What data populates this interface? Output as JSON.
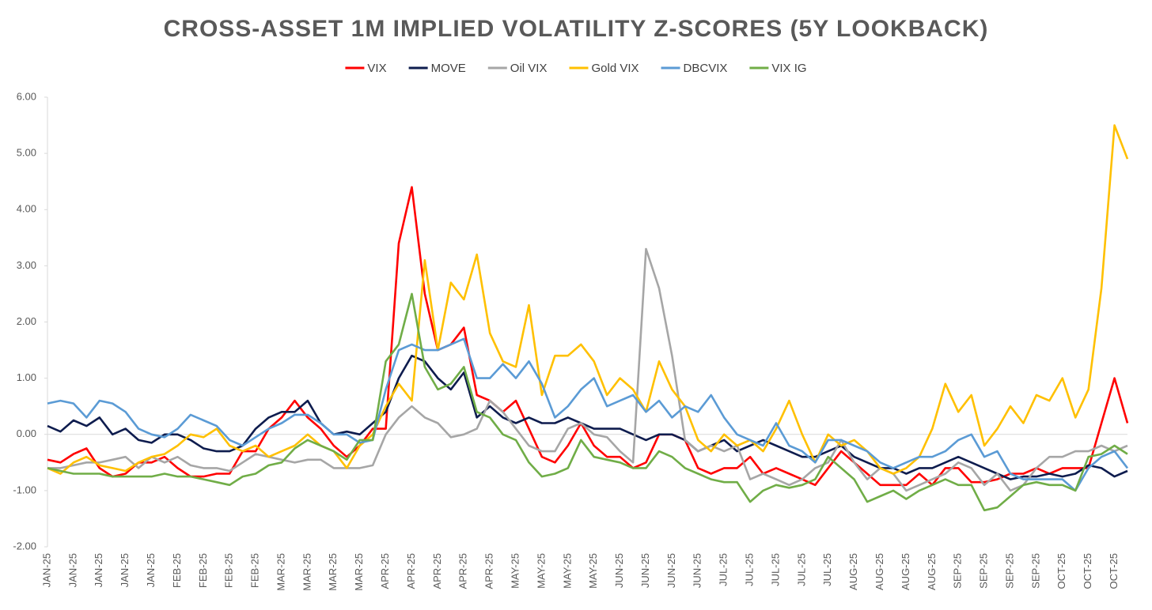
{
  "chart_data": {
    "type": "line",
    "title": "CROSS-ASSET 1M IMPLIED VOLATILITY Z-SCORES (5Y LOOKBACK)",
    "categories": [
      "JAN-25",
      null,
      "JAN-25",
      null,
      "JAN-25",
      null,
      "JAN-25",
      null,
      "JAN-25",
      null,
      "FEB-25",
      null,
      "FEB-25",
      null,
      "FEB-25",
      null,
      "FEB-25",
      null,
      "MAR-25",
      null,
      "MAR-25",
      null,
      "MAR-25",
      null,
      "MAR-25",
      null,
      "APR-25",
      null,
      "APR-25",
      null,
      "APR-25",
      null,
      "APR-25",
      null,
      "APR-25",
      null,
      "MAY-25",
      null,
      "MAY-25",
      null,
      "MAY-25",
      null,
      "MAY-25",
      null,
      "JUN-25",
      null,
      "JUN-25",
      null,
      "JUN-25",
      null,
      "JUN-25",
      null,
      "JUL-25",
      null,
      "JUL-25",
      null,
      "JUL-25",
      null,
      "JUL-25",
      null,
      "JUL-25",
      null,
      "AUG-25",
      null,
      "AUG-25",
      null,
      "AUG-25",
      null,
      "AUG-25",
      null,
      "SEP-25",
      null,
      "SEP-25",
      null,
      "SEP-25",
      null,
      "SEP-25",
      null,
      "OCT-25",
      null,
      "OCT-25",
      null,
      "OCT-25",
      null
    ],
    "series": [
      {
        "name": "VIX",
        "color": "#ff0000",
        "values": [
          -0.45,
          -0.5,
          -0.35,
          -0.25,
          -0.6,
          -0.75,
          -0.7,
          -0.5,
          -0.5,
          -0.4,
          -0.6,
          -0.75,
          -0.75,
          -0.7,
          -0.7,
          -0.3,
          -0.3,
          0.1,
          0.3,
          0.6,
          0.3,
          0.1,
          -0.2,
          -0.4,
          -0.2,
          0.1,
          0.1,
          3.4,
          4.4,
          2.5,
          1.5,
          1.6,
          1.9,
          0.7,
          0.6,
          0.4,
          0.6,
          0.1,
          -0.4,
          -0.5,
          -0.2,
          0.2,
          -0.2,
          -0.4,
          -0.4,
          -0.6,
          -0.5,
          0.0,
          0.0,
          -0.1,
          -0.6,
          -0.7,
          -0.6,
          -0.6,
          -0.4,
          -0.7,
          -0.6,
          -0.7,
          -0.8,
          -0.9,
          -0.6,
          -0.3,
          -0.5,
          -0.7,
          -0.9,
          -0.9,
          -0.9,
          -0.7,
          -0.9,
          -0.6,
          -0.6,
          -0.85,
          -0.85,
          -0.8,
          -0.7,
          -0.7,
          -0.6,
          -0.7,
          -0.6,
          -0.6,
          -0.6,
          0.2,
          1.0,
          0.2
        ]
      },
      {
        "name": "MOVE",
        "color": "#0e1c4e",
        "values": [
          0.15,
          0.05,
          0.25,
          0.15,
          0.3,
          0.0,
          0.1,
          -0.1,
          -0.15,
          0.0,
          0.0,
          -0.1,
          -0.25,
          -0.3,
          -0.3,
          -0.2,
          0.1,
          0.3,
          0.4,
          0.4,
          0.6,
          0.2,
          0.0,
          0.05,
          0.0,
          0.2,
          0.4,
          1.0,
          1.4,
          1.3,
          1.0,
          0.8,
          1.1,
          0.3,
          0.5,
          0.3,
          0.2,
          0.3,
          0.2,
          0.2,
          0.3,
          0.2,
          0.1,
          0.1,
          0.1,
          0.0,
          -0.1,
          0.0,
          0.0,
          -0.1,
          -0.3,
          -0.2,
          -0.1,
          -0.3,
          -0.2,
          -0.1,
          -0.2,
          -0.3,
          -0.4,
          -0.4,
          -0.3,
          -0.2,
          -0.4,
          -0.5,
          -0.6,
          -0.6,
          -0.7,
          -0.6,
          -0.6,
          -0.5,
          -0.4,
          -0.5,
          -0.6,
          -0.7,
          -0.8,
          -0.75,
          -0.75,
          -0.7,
          -0.75,
          -0.7,
          -0.55,
          -0.6,
          -0.75,
          -0.65
        ]
      },
      {
        "name": "Oil VIX",
        "color": "#a6a6a6",
        "values": [
          -0.6,
          -0.6,
          -0.55,
          -0.5,
          -0.5,
          -0.45,
          -0.4,
          -0.6,
          -0.4,
          -0.5,
          -0.4,
          -0.55,
          -0.6,
          -0.6,
          -0.65,
          -0.5,
          -0.35,
          -0.4,
          -0.45,
          -0.5,
          -0.45,
          -0.45,
          -0.6,
          -0.6,
          -0.6,
          -0.55,
          0.0,
          0.3,
          0.5,
          0.3,
          0.2,
          -0.05,
          0.0,
          0.1,
          0.6,
          0.4,
          0.1,
          -0.2,
          -0.3,
          -0.3,
          0.1,
          0.2,
          0.0,
          -0.05,
          -0.3,
          -0.5,
          3.3,
          2.6,
          1.4,
          -0.1,
          -0.3,
          -0.2,
          -0.3,
          -0.2,
          -0.8,
          -0.7,
          -0.8,
          -0.9,
          -0.8,
          -0.6,
          -0.5,
          -0.1,
          -0.5,
          -0.8,
          -0.6,
          -0.7,
          -1.0,
          -0.9,
          -0.8,
          -0.7,
          -0.5,
          -0.6,
          -0.9,
          -0.7,
          -1.0,
          -0.9,
          -0.6,
          -0.4,
          -0.4,
          -0.3,
          -0.3,
          -0.2,
          -0.3,
          -0.2
        ]
      },
      {
        "name": "Gold VIX",
        "color": "#ffc000",
        "values": [
          -0.6,
          -0.7,
          -0.5,
          -0.4,
          -0.55,
          -0.6,
          -0.65,
          -0.5,
          -0.4,
          -0.35,
          -0.2,
          0.0,
          -0.05,
          0.1,
          -0.2,
          -0.3,
          -0.2,
          -0.4,
          -0.3,
          -0.2,
          0.0,
          -0.2,
          -0.3,
          -0.6,
          -0.2,
          0.0,
          0.5,
          0.9,
          0.6,
          3.1,
          1.5,
          2.7,
          2.4,
          3.2,
          1.8,
          1.3,
          1.2,
          2.3,
          0.7,
          1.4,
          1.4,
          1.6,
          1.3,
          0.7,
          1.0,
          0.8,
          0.4,
          1.3,
          0.8,
          0.5,
          -0.1,
          -0.3,
          0.0,
          -0.2,
          -0.1,
          -0.3,
          0.1,
          0.6,
          0.0,
          -0.5,
          0.0,
          -0.2,
          -0.1,
          -0.3,
          -0.6,
          -0.7,
          -0.6,
          -0.4,
          0.1,
          0.9,
          0.4,
          0.7,
          -0.2,
          0.1,
          0.5,
          0.2,
          0.7,
          0.6,
          1.0,
          0.3,
          0.8,
          2.6,
          5.5,
          4.9
        ]
      },
      {
        "name": "DBCVIX",
        "color": "#5b9bd5",
        "values": [
          0.55,
          0.6,
          0.55,
          0.3,
          0.6,
          0.55,
          0.4,
          0.1,
          0.0,
          -0.05,
          0.1,
          0.35,
          0.25,
          0.15,
          -0.1,
          -0.2,
          -0.05,
          0.1,
          0.2,
          0.35,
          0.35,
          0.2,
          0.0,
          0.0,
          -0.15,
          -0.1,
          0.8,
          1.5,
          1.6,
          1.5,
          1.5,
          1.6,
          1.7,
          1.0,
          1.0,
          1.25,
          1.0,
          1.3,
          0.9,
          0.3,
          0.5,
          0.8,
          1.0,
          0.5,
          0.6,
          0.7,
          0.4,
          0.6,
          0.3,
          0.5,
          0.4,
          0.7,
          0.3,
          0.0,
          -0.1,
          -0.2,
          0.2,
          -0.2,
          -0.3,
          -0.5,
          -0.1,
          -0.1,
          -0.2,
          -0.3,
          -0.5,
          -0.6,
          -0.5,
          -0.4,
          -0.4,
          -0.3,
          -0.1,
          0.0,
          -0.4,
          -0.3,
          -0.7,
          -0.8,
          -0.8,
          -0.8,
          -0.8,
          -1.0,
          -0.6,
          -0.4,
          -0.3,
          -0.6
        ]
      },
      {
        "name": "VIX IG",
        "color": "#70ad47",
        "values": [
          -0.6,
          -0.65,
          -0.7,
          -0.7,
          -0.7,
          -0.75,
          -0.75,
          -0.75,
          -0.75,
          -0.7,
          -0.75,
          -0.75,
          -0.8,
          -0.85,
          -0.9,
          -0.75,
          -0.7,
          -0.55,
          -0.5,
          -0.25,
          -0.1,
          -0.2,
          -0.3,
          -0.45,
          -0.1,
          -0.1,
          1.3,
          1.6,
          2.5,
          1.2,
          0.8,
          0.9,
          1.2,
          0.4,
          0.3,
          0.0,
          -0.1,
          -0.5,
          -0.75,
          -0.7,
          -0.6,
          -0.1,
          -0.4,
          -0.45,
          -0.5,
          -0.6,
          -0.6,
          -0.3,
          -0.4,
          -0.6,
          -0.7,
          -0.8,
          -0.85,
          -0.85,
          -1.2,
          -1.0,
          -0.9,
          -0.95,
          -0.9,
          -0.8,
          -0.4,
          -0.6,
          -0.8,
          -1.2,
          -1.1,
          -1.0,
          -1.15,
          -1.0,
          -0.9,
          -0.8,
          -0.9,
          -0.9,
          -1.35,
          -1.3,
          -1.1,
          -0.9,
          -0.85,
          -0.9,
          -0.9,
          -1.0,
          -0.4,
          -0.35,
          -0.2,
          -0.35
        ]
      }
    ],
    "ylim": [
      -2,
      6
    ],
    "yticks": [
      {
        "value": -2,
        "label": "-2.00"
      },
      {
        "value": -1,
        "label": "-1.00"
      },
      {
        "value": 0,
        "label": "0.00"
      },
      {
        "value": 1,
        "label": "1.00"
      },
      {
        "value": 2,
        "label": "2.00"
      },
      {
        "value": 3,
        "label": "3.00"
      },
      {
        "value": 4,
        "label": "4.00"
      },
      {
        "value": 5,
        "label": "5.00"
      },
      {
        "value": 6,
        "label": "6.00"
      }
    ],
    "legend": "top"
  }
}
